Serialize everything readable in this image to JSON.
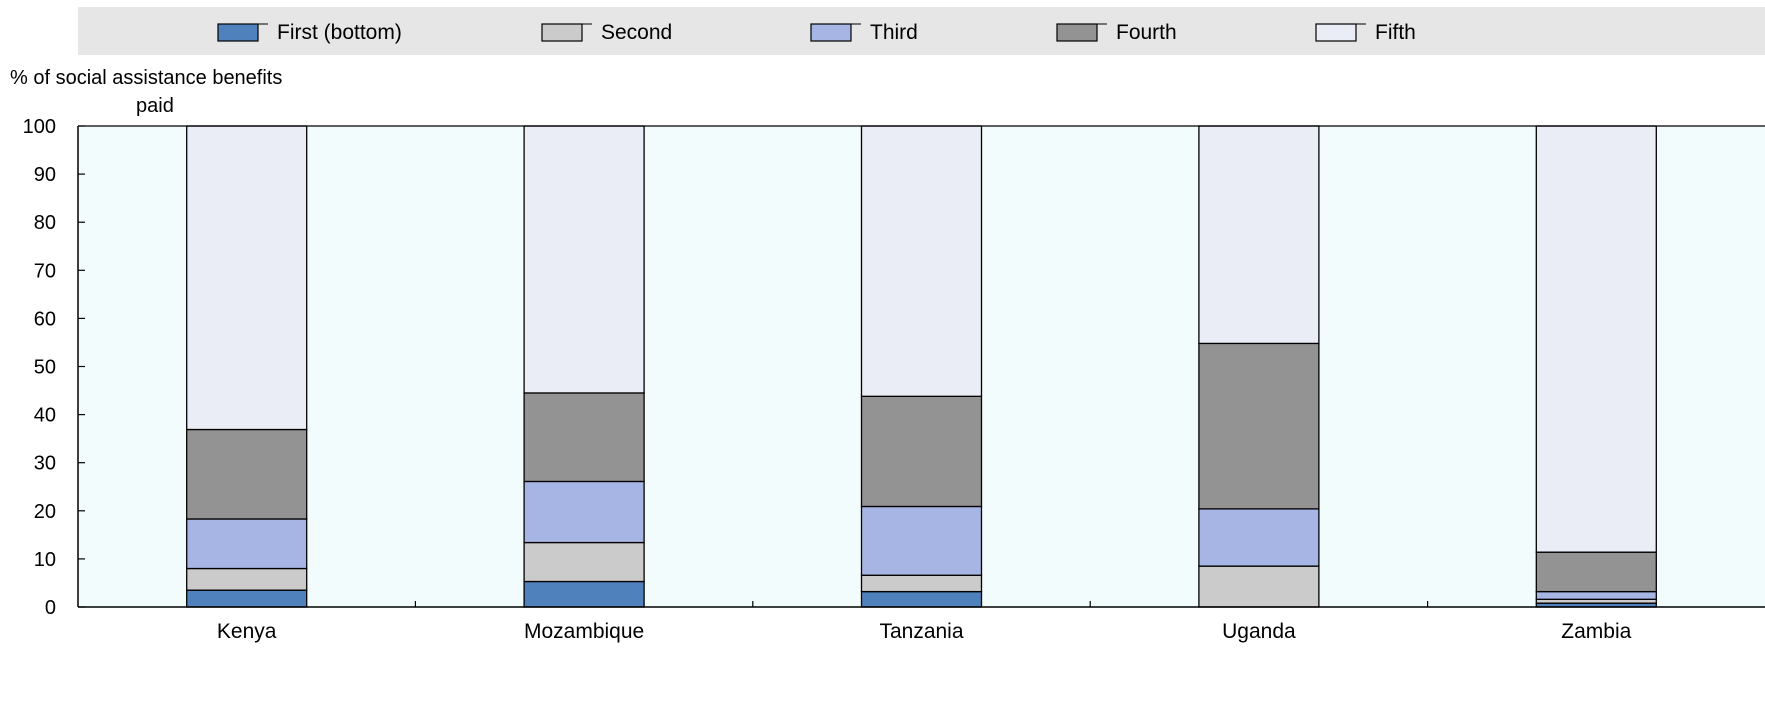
{
  "chart_data": {
    "type": "bar",
    "stacked": true,
    "ylabel": [
      "% of social assistance benefits",
      "paid"
    ],
    "ylim": [
      0,
      100
    ],
    "yticks": [
      0,
      10,
      20,
      30,
      40,
      50,
      60,
      70,
      80,
      90,
      100
    ],
    "categories": [
      "Kenya",
      "Mozambique",
      "Tanzania",
      "Uganda",
      "Zambia"
    ],
    "series": [
      {
        "name": "First (bottom)",
        "color": "#4f81bd",
        "values": [
          3.5,
          5.3,
          3.2,
          0.0,
          0.8
        ]
      },
      {
        "name": "Second",
        "color": "#cbcbcb",
        "values": [
          4.5,
          8.1,
          3.4,
          8.5,
          0.8
        ]
      },
      {
        "name": "Third",
        "color": "#a6b5e3",
        "values": [
          10.3,
          12.7,
          14.3,
          11.9,
          1.6
        ]
      },
      {
        "name": "Fourth",
        "color": "#939393",
        "values": [
          18.6,
          18.4,
          22.9,
          34.4,
          8.2
        ]
      },
      {
        "name": "Fifth",
        "color": "#eaedf6",
        "values": [
          63.1,
          55.5,
          56.2,
          45.2,
          88.6
        ]
      }
    ],
    "legend_position": "top",
    "grid": false,
    "plot_background": "#f3fcfc"
  }
}
